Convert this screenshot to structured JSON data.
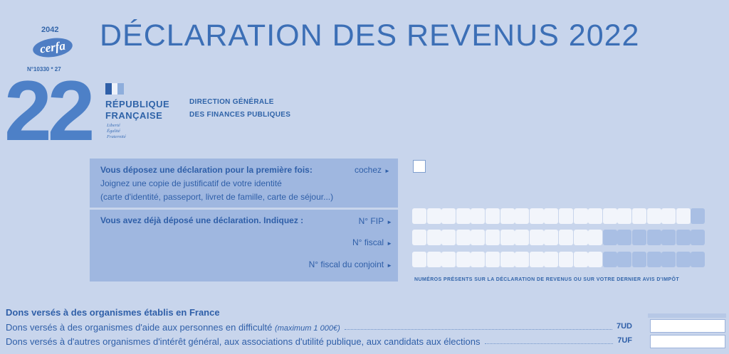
{
  "header": {
    "form_number": "2042",
    "cerfa_logo": "cerfa",
    "cerfa_number": "N°10330 * 27",
    "year_code": "22",
    "title": "DÉCLARATION DES REVENUS 2022"
  },
  "republique": {
    "line1": "RÉPUBLIQUE",
    "line2": "FRANÇAISE",
    "motto": [
      "Liberté",
      "Égalité",
      "Fraternité"
    ],
    "colors": [
      "#2f5fa8",
      "#eef2fa",
      "#8eaedc"
    ]
  },
  "direction": {
    "line1": "DIRECTION GÉNÉRALE",
    "line2": "DES FINANCES PUBLIQUES"
  },
  "first_declaration": {
    "question": "Vous déposez une déclaration pour la première fois:",
    "action": "cochez",
    "instruction": "Joignez une copie de justificatif de votre identité",
    "documents": "(carte d'identité, passeport, livret de famille, carte de séjour...)",
    "checked": false
  },
  "already_declared": {
    "question": "Vous avez déjà déposé une déclaration. Indiquez :",
    "fields": [
      {
        "label": "N° FIP",
        "white_cells": 19,
        "dark_cells": 1
      },
      {
        "label": "N° fiscal",
        "white_cells": 13,
        "dark_cells": 7
      },
      {
        "label": "N° fiscal du conjoint",
        "white_cells": 13,
        "dark_cells": 7
      }
    ],
    "note": "NUMÉROS PRÉSENTS SUR LA DÉCLARATION DE REVENUS OU SUR VOTRE DERNIER AVIS D'IMPÔT"
  },
  "dons": {
    "heading": "Dons versés à des organismes établis en France",
    "lines": [
      {
        "label": "Dons versés à des organismes d'aide aux personnes en difficulté",
        "note": "(maximum 1 000€)",
        "code": "7UD",
        "value": ""
      },
      {
        "label": "Dons versés à d'autres organismes d'intérêt général, aux associations d'utilité publique, aux candidats aux élections",
        "note": "",
        "code": "7UF",
        "value": ""
      }
    ]
  },
  "colors": {
    "background": "#c8d5ec",
    "panel": "#9fb7e0",
    "text": "#2f63a8"
  }
}
